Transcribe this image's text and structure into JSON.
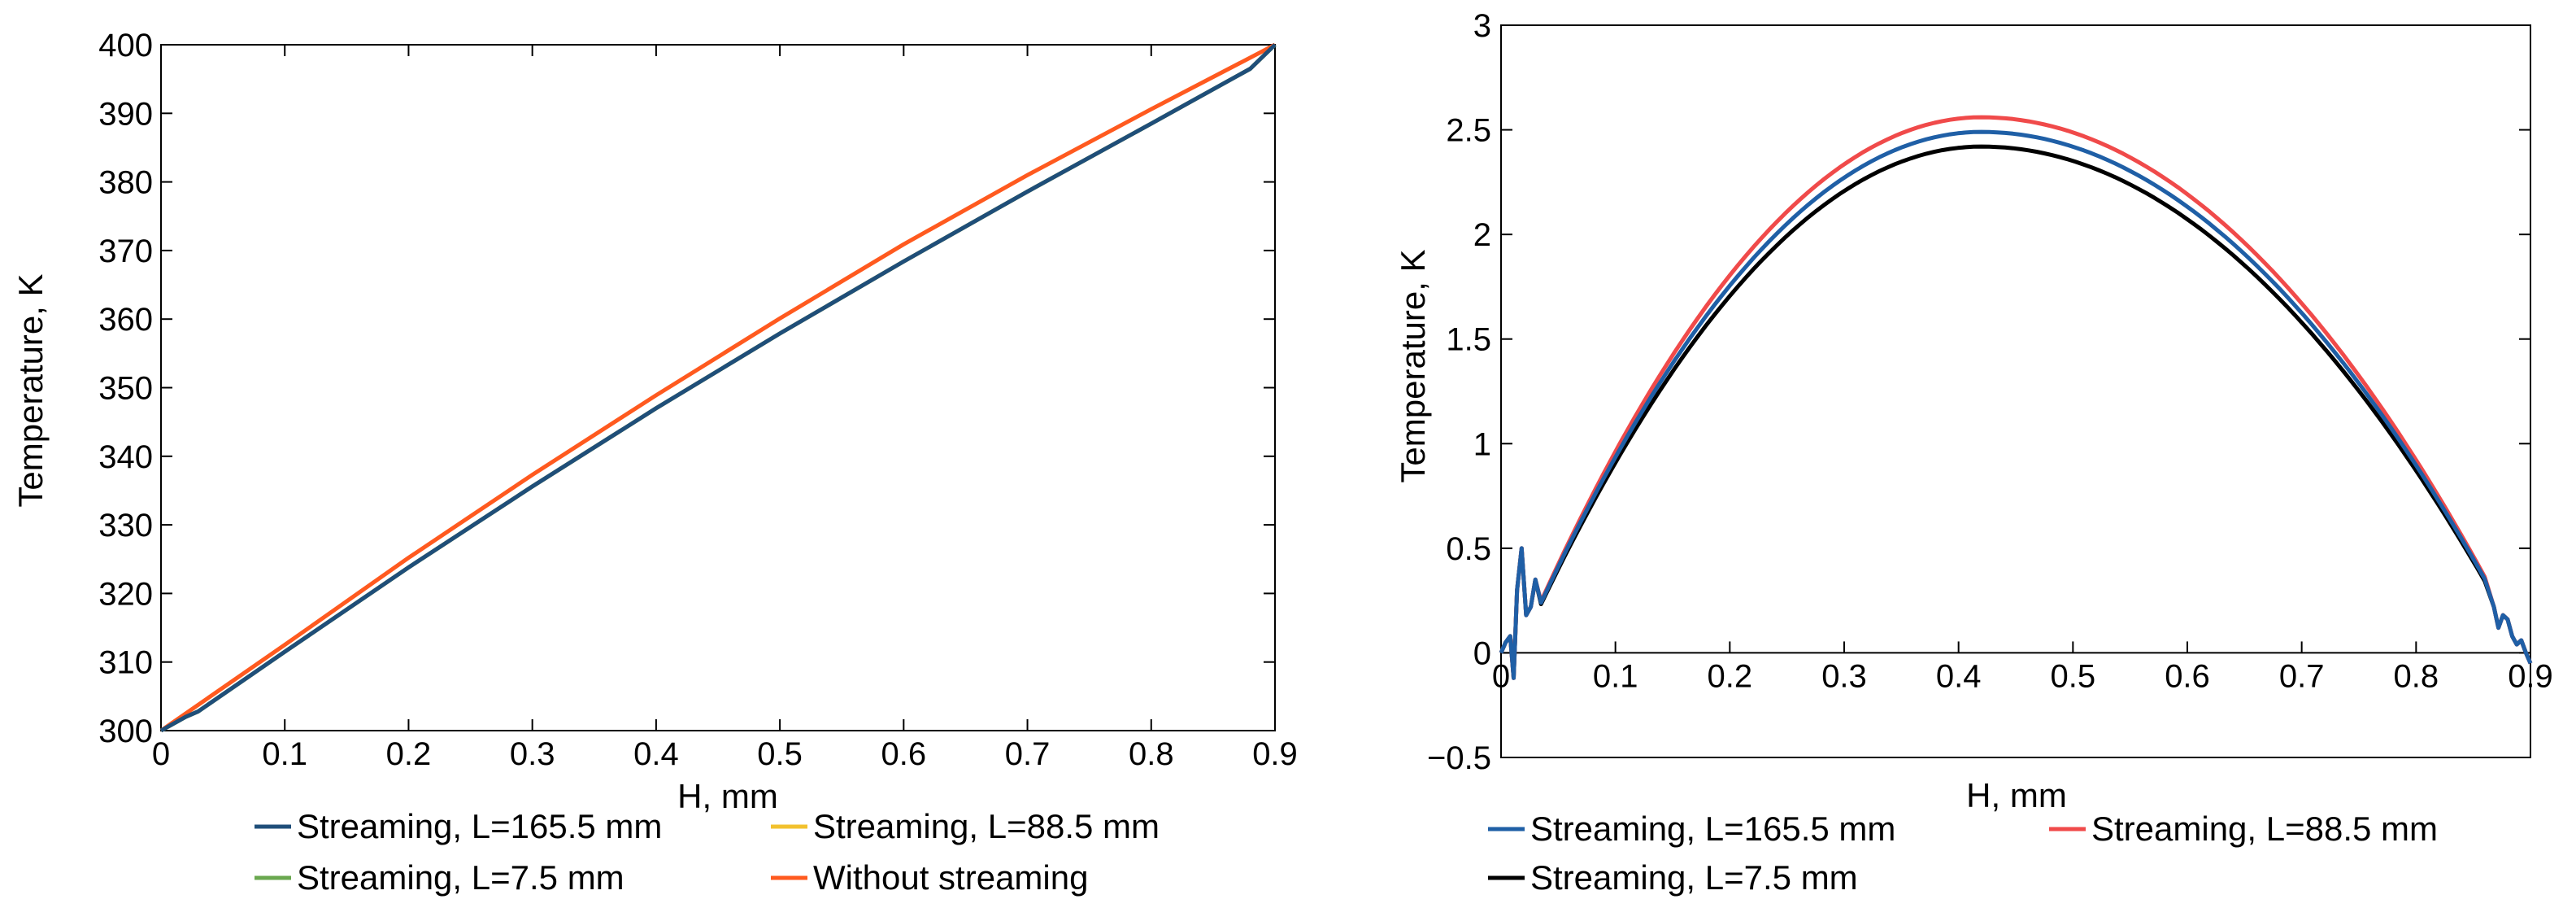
{
  "chart_data": [
    {
      "type": "line",
      "xlabel": "H, mm",
      "ylabel": "Temperature, K",
      "xlim": [
        0,
        0.9
      ],
      "ylim": [
        300,
        400
      ],
      "xticks": [
        "0",
        "0.1",
        "0.2",
        "0.3",
        "0.4",
        "0.5",
        "0.6",
        "0.7",
        "0.8",
        "0.9"
      ],
      "yticks": [
        "300",
        "310",
        "320",
        "330",
        "340",
        "350",
        "360",
        "370",
        "380",
        "390",
        "400"
      ],
      "grid": false,
      "legend_position": "bottom",
      "series": [
        {
          "name": "Streaming, L=165.5 mm",
          "color": "#1f4e79",
          "x": [
            0,
            0.02,
            0.03,
            0.1,
            0.2,
            0.3,
            0.4,
            0.5,
            0.6,
            0.7,
            0.8,
            0.87,
            0.88,
            0.9
          ],
          "y": [
            300,
            302,
            302.8,
            311.5,
            323.8,
            335.6,
            347.0,
            357.9,
            368.4,
            378.6,
            388.5,
            395.5,
            396.5,
            400
          ]
        },
        {
          "name": "Streaming, L=88.5 mm",
          "color": "#f2c12e",
          "x": [
            0,
            0.02,
            0.03,
            0.1,
            0.2,
            0.3,
            0.4,
            0.5,
            0.6,
            0.7,
            0.8,
            0.87,
            0.88,
            0.9
          ],
          "y": [
            300,
            302,
            302.8,
            311.5,
            323.8,
            335.6,
            347.0,
            357.9,
            368.4,
            378.6,
            388.5,
            395.5,
            396.5,
            400
          ]
        },
        {
          "name": "Streaming, L=7.5 mm",
          "color": "#6aa84f",
          "x": [
            0,
            0.02,
            0.03,
            0.1,
            0.2,
            0.3,
            0.4,
            0.5,
            0.6,
            0.7,
            0.8,
            0.87,
            0.88,
            0.9
          ],
          "y": [
            300,
            302,
            302.8,
            311.5,
            323.8,
            335.6,
            347.0,
            357.9,
            368.4,
            378.6,
            388.5,
            395.5,
            396.5,
            400
          ]
        },
        {
          "name": "Without streaming",
          "color": "#ff5a1f",
          "x": [
            0,
            0.1,
            0.2,
            0.3,
            0.4,
            0.5,
            0.6,
            0.7,
            0.8,
            0.9
          ],
          "y": [
            300,
            312.5,
            325.2,
            337.3,
            348.9,
            360.1,
            370.9,
            381.0,
            390.6,
            400
          ]
        }
      ]
    },
    {
      "type": "line",
      "xlabel": "H, mm",
      "ylabel": "Temperature, K",
      "xlim": [
        0,
        0.9
      ],
      "ylim": [
        -0.5,
        3
      ],
      "xticks": [
        "0",
        "0.1",
        "0.2",
        "0.3",
        "0.4",
        "0.5",
        "0.6",
        "0.7",
        "0.8",
        "0.9"
      ],
      "yticks": [
        "−0.5",
        "0",
        "0.5",
        "1",
        "1.5",
        "2",
        "2.5",
        "3"
      ],
      "grid": false,
      "legend_position": "bottom",
      "series": [
        {
          "name": "Streaming, L=165.5 mm",
          "color": "#1f5fa6",
          "peak": 2.49
        },
        {
          "name": "Streaming, L=88.5 mm",
          "color": "#f04a4a",
          "peak": 2.56
        },
        {
          "name": "Streaming, L=7.5 mm",
          "color": "#000000",
          "peak": 2.42
        }
      ]
    }
  ]
}
